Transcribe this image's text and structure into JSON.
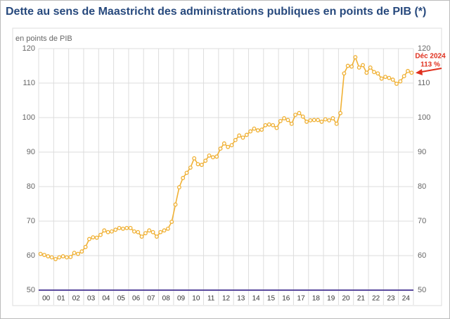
{
  "chart_data": {
    "type": "line",
    "title": "Dette au sens de Maastricht des administrations publiques en points de PIB (*)",
    "y_label": "en points de PIB",
    "annotations": [
      "Déc 2024",
      "113 %"
    ],
    "categories": [
      "00",
      null,
      null,
      null,
      "01",
      null,
      null,
      null,
      "02",
      null,
      null,
      null,
      "03",
      null,
      null,
      null,
      "04",
      null,
      null,
      null,
      "05",
      null,
      null,
      null,
      "06",
      null,
      null,
      null,
      "07",
      null,
      null,
      null,
      "08",
      null,
      null,
      null,
      "09",
      null,
      null,
      null,
      "10",
      null,
      null,
      null,
      "11",
      null,
      null,
      null,
      "12",
      null,
      null,
      null,
      "13",
      null,
      null,
      null,
      "14",
      null,
      null,
      null,
      "15",
      null,
      null,
      null,
      "16",
      null,
      null,
      null,
      "17",
      null,
      null,
      null,
      "18",
      null,
      null,
      null,
      "19",
      null,
      null,
      null,
      "20",
      null,
      null,
      null,
      "21",
      null,
      null,
      null,
      "22",
      null,
      null,
      null,
      "23",
      null,
      null,
      null,
      "24",
      null,
      null,
      null
    ],
    "series": [
      {
        "color": "#f0b135",
        "values": [
          60.5,
          60.2,
          59.8,
          59.5,
          59.0,
          59.5,
          59.8,
          59.5,
          59.6,
          60.8,
          60.5,
          61.2,
          62.5,
          64.8,
          65.3,
          65.2,
          66.0,
          67.3,
          66.8,
          67.0,
          67.5,
          68.0,
          67.8,
          68.0,
          68.0,
          67.0,
          66.8,
          65.5,
          66.5,
          67.3,
          66.8,
          65.5,
          66.8,
          67.3,
          67.8,
          69.8,
          74.8,
          79.8,
          82.5,
          84.0,
          85.5,
          88.2,
          86.5,
          86.3,
          87.5,
          89.0,
          88.5,
          88.7,
          91.0,
          92.5,
          91.5,
          92.0,
          93.5,
          94.8,
          94.2,
          95.0,
          96.0,
          96.8,
          96.3,
          96.5,
          97.8,
          98.0,
          97.8,
          97.0,
          99.0,
          99.8,
          99.3,
          98.2,
          100.8,
          101.3,
          100.3,
          98.8,
          99.2,
          99.3,
          99.3,
          98.8,
          99.5,
          99.2,
          99.8,
          98.2,
          101.3,
          112.8,
          115.0,
          114.8,
          117.5,
          114.5,
          115.2,
          113.0,
          114.5,
          113.2,
          112.8,
          111.3,
          111.8,
          111.5,
          111.0,
          109.8,
          110.5,
          112.0,
          113.5,
          113.0
        ]
      }
    ],
    "ylim": [
      50,
      120
    ],
    "yticks": [
      50,
      60,
      70,
      80,
      90,
      100,
      110,
      120
    ],
    "grid": true
  }
}
